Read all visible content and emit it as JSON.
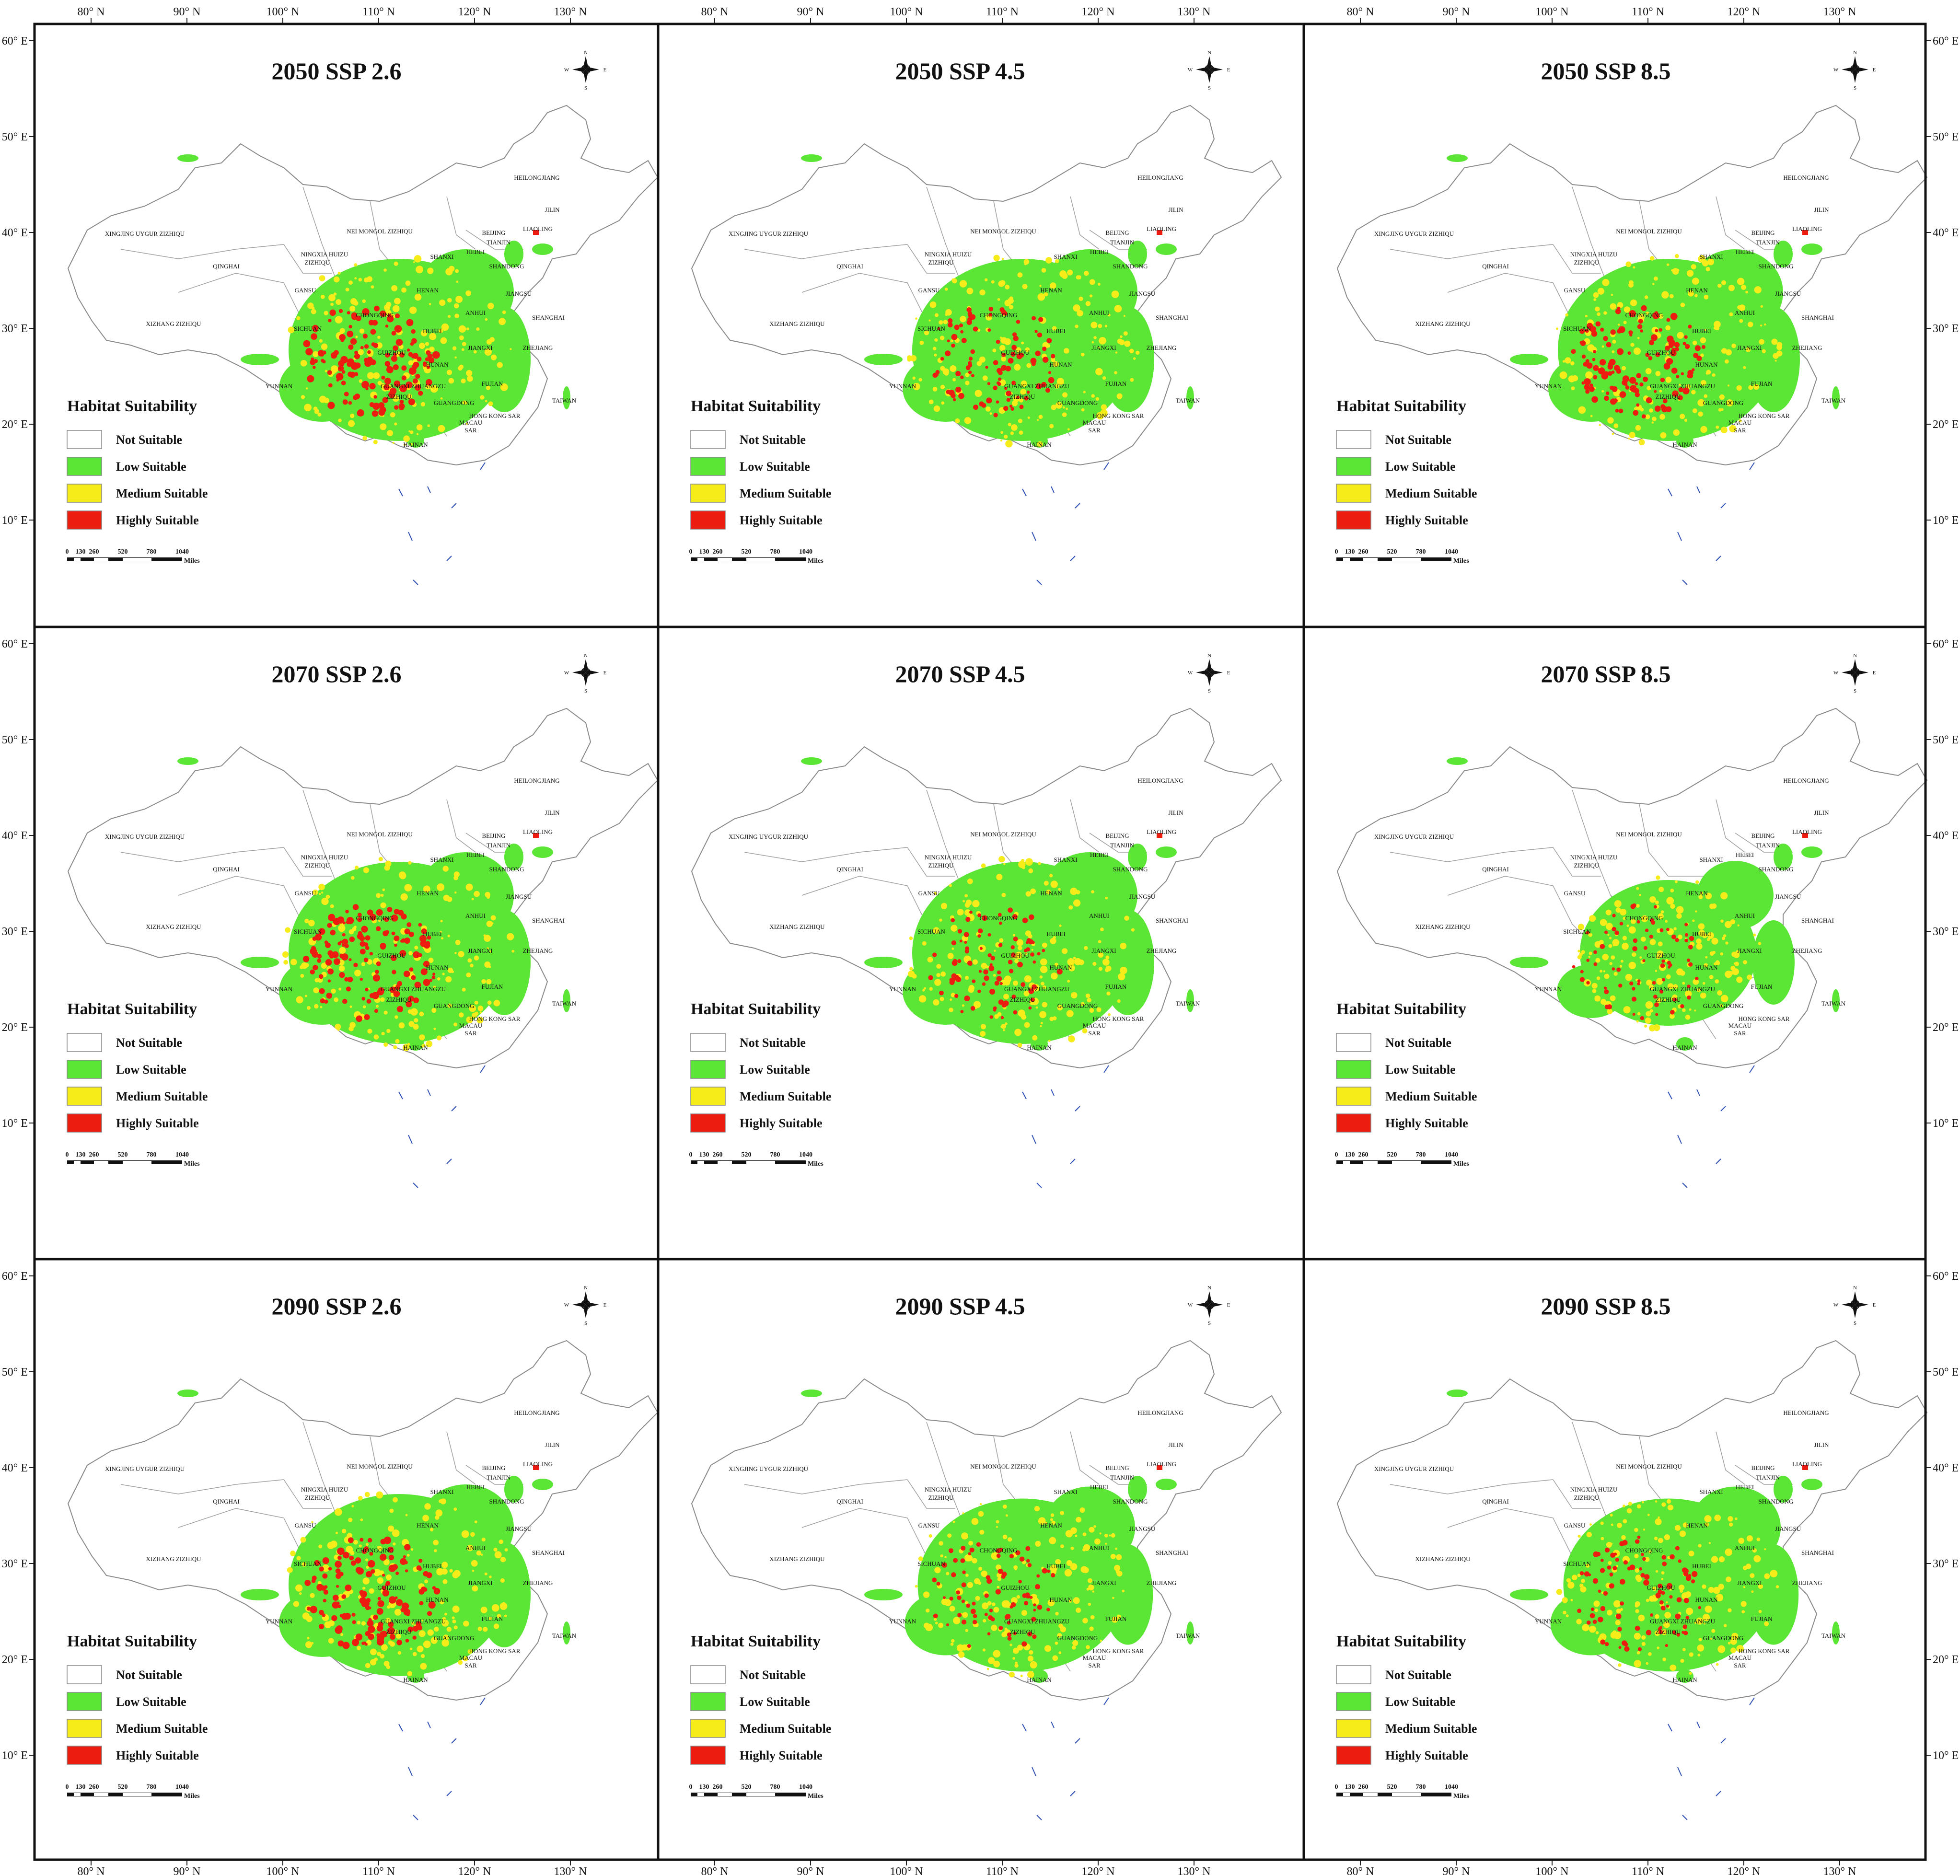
{
  "figure": {
    "axis_top_labels": [
      "80° N",
      "90° N",
      "100° N",
      "110° N",
      "120° N",
      "130° N"
    ],
    "axis_bottom_labels": [
      "80° N",
      "90° N",
      "100° N",
      "110° N",
      "120° N",
      "130° N"
    ],
    "axis_side_labels": [
      "60° E",
      "50° E",
      "40° E",
      "30° E",
      "20° E",
      "10° E"
    ]
  },
  "legend": {
    "heading": "Habitat Suitability",
    "classes": [
      {
        "label": "Not Suitable",
        "color": "#ffffff"
      },
      {
        "label": "Low Suitable",
        "color": "#5be535"
      },
      {
        "label": "Medium Suitable",
        "color": "#f5ec1a"
      },
      {
        "label": "Highly Suitable",
        "color": "#ec1c10"
      }
    ]
  },
  "scale_bar": {
    "ticks": [
      "0",
      "130",
      "260",
      "520",
      "780",
      "1040"
    ],
    "unit": "Miles"
  },
  "compass": {
    "n": "N",
    "s": "S",
    "e": "E",
    "w": "W"
  },
  "province_labels": [
    "XINGJING UYGUR ZIZHIQU",
    "NEI MONGOL ZIZHIQU",
    "HEILONGJIANG",
    "JILIN",
    "LIAOLING",
    "BEIJING",
    "TIANJIN",
    "HEBEI",
    "SHANXI",
    "SHANDONG",
    "NINGXIA HUIZU",
    "ZIZHIQU",
    "GANSU",
    "QINGHAI",
    "XIZHANG ZIZHIQU",
    "SICHUAN",
    "CHONGQING",
    "HENAN",
    "JIANGSU",
    "ANHUI",
    "SHANGHAI",
    "HUBEI",
    "ZHEJIANG",
    "JIANGXI",
    "HUNAN",
    "GUIZHOU",
    "YUNNAN",
    "GUANGXI ZHUANGZU",
    "ZIZHIQU",
    "FUJIAN",
    "TAIWAN",
    "GUANGDONG",
    "HONG KONG SAR",
    "MACAU",
    "SAR",
    "HAINAN"
  ],
  "panels": [
    {
      "title": "2050 SSP 2.6",
      "suitable_extent": 1.0,
      "high_share": 0.55
    },
    {
      "title": "2050 SSP 4.5",
      "suitable_extent": 1.0,
      "high_share": 0.38
    },
    {
      "title": "2050 SSP 8.5",
      "suitable_extent": 1.0,
      "high_share": 0.5
    },
    {
      "title": "2070 SSP 2.6",
      "suitable_extent": 1.0,
      "high_share": 0.52
    },
    {
      "title": "2070 SSP 4.5",
      "suitable_extent": 1.0,
      "high_share": 0.34
    },
    {
      "title": "2070 SSP 8.5",
      "suitable_extent": 0.8,
      "high_share": 0.26
    },
    {
      "title": "2090 SSP 2.6",
      "suitable_extent": 1.0,
      "high_share": 0.54
    },
    {
      "title": "2090 SSP 4.5",
      "suitable_extent": 0.95,
      "high_share": 0.3
    },
    {
      "title": "2090 SSP 8.5",
      "suitable_extent": 0.95,
      "high_share": 0.36
    }
  ]
}
